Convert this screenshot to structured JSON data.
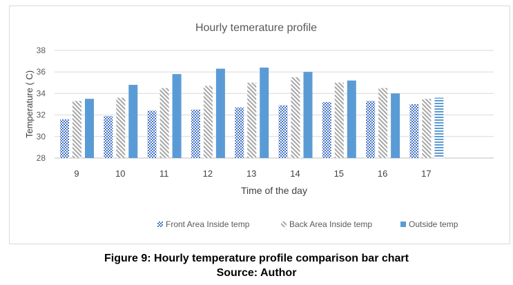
{
  "colors": {
    "front": "#4472c4",
    "back": "#a5a5a5",
    "outside": "#5b9bd5",
    "grid": "#d9d9d9",
    "text": "#595959"
  },
  "chart_data": {
    "type": "bar",
    "title": "Hourly temerature profile",
    "xlabel": "Time of the day",
    "ylabel": "Temperature ( C)",
    "categories": [
      "9",
      "10",
      "11",
      "12",
      "13",
      "14",
      "15",
      "16",
      "17"
    ],
    "ylim": [
      28,
      38
    ],
    "yticks": [
      28,
      30,
      32,
      34,
      36,
      38
    ],
    "grid": true,
    "legend_position": "bottom",
    "series": [
      {
        "name": "Front Area Inside temp",
        "values": [
          31.6,
          31.9,
          32.4,
          32.5,
          32.7,
          32.9,
          33.2,
          33.3,
          33.0
        ],
        "pattern": "dotted"
      },
      {
        "name": "Back Area Inside temp",
        "values": [
          33.3,
          33.6,
          34.5,
          34.7,
          35.0,
          35.5,
          35.0,
          34.5,
          33.5
        ],
        "pattern": "diagonal"
      },
      {
        "name": "Outside temp",
        "values": [
          33.5,
          34.8,
          35.8,
          36.3,
          36.4,
          36.0,
          35.2,
          34.0,
          33.6
        ],
        "pattern": "solid"
      }
    ]
  },
  "caption": {
    "line1": "Figure 9: Hourly temperature profile comparison bar chart",
    "line2": "Source: Author"
  }
}
